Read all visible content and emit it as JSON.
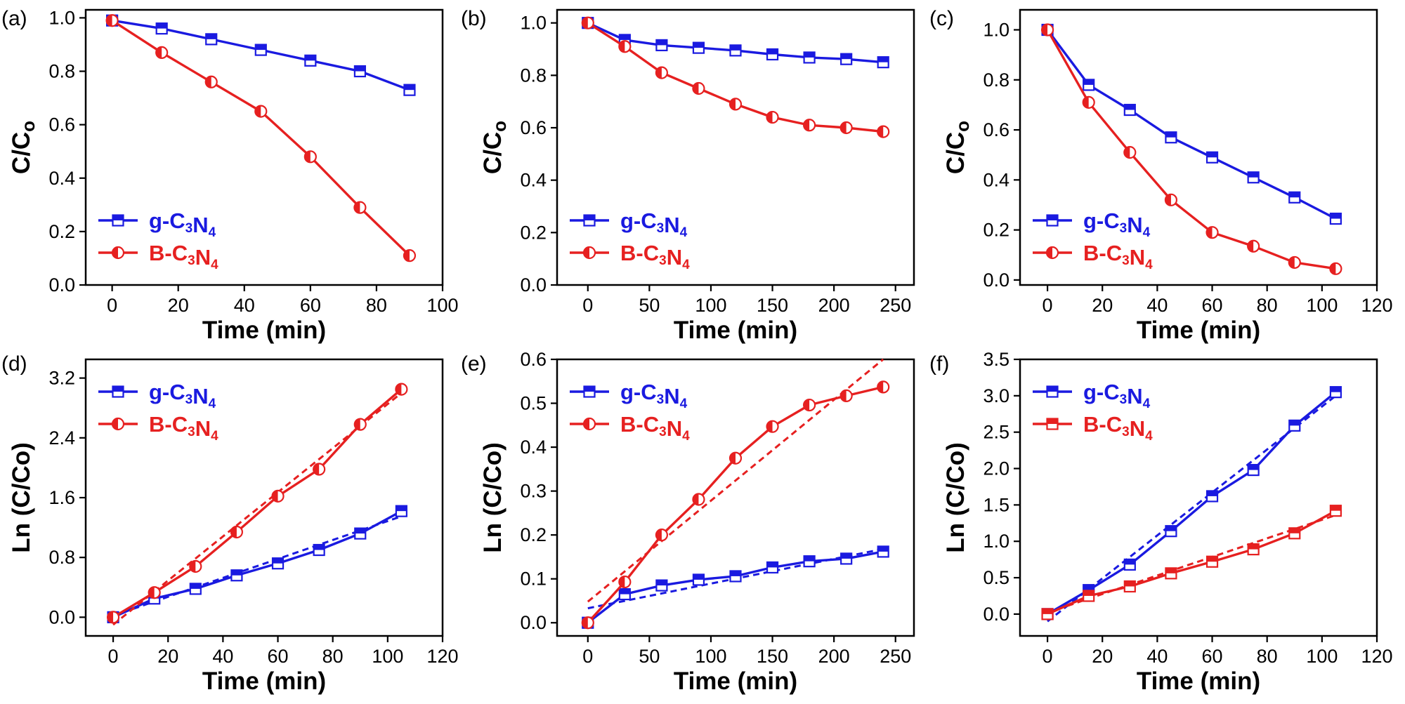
{
  "colors": {
    "blue": "#1a1ae0",
    "red": "#e62020",
    "axis": "#000000"
  },
  "chart_data": [
    {
      "panel": "(a)",
      "type": "line",
      "xlabel": "Time (min)",
      "ylabel": "C/Co",
      "xlim": [
        -8,
        100
      ],
      "ylim": [
        0.0,
        1.03
      ],
      "xticks": [
        0,
        20,
        40,
        60,
        80,
        100
      ],
      "yticks": [
        0.0,
        0.2,
        0.4,
        0.6,
        0.8,
        1.0
      ],
      "xtick_labels": [
        "0",
        "20",
        "40",
        "60",
        "80",
        "100"
      ],
      "ytick_labels": [
        "0.0",
        "0.2",
        "0.4",
        "0.6",
        "0.8",
        "1.0"
      ],
      "legend_position": "bottom-left",
      "series": [
        {
          "name": "g-C3N4",
          "sym": "g",
          "color": "blue",
          "marker": "square",
          "x": [
            0,
            15,
            30,
            45,
            60,
            75,
            90
          ],
          "y": [
            0.99,
            0.96,
            0.92,
            0.88,
            0.84,
            0.8,
            0.73
          ]
        },
        {
          "name": "B-C3N4",
          "sym": "B",
          "color": "red",
          "marker": "circle",
          "x": [
            0,
            15,
            30,
            45,
            60,
            75,
            90
          ],
          "y": [
            0.99,
            0.87,
            0.76,
            0.65,
            0.48,
            0.29,
            0.11
          ]
        }
      ]
    },
    {
      "panel": "(b)",
      "type": "line",
      "xlabel": "Time (min)",
      "ylabel": "C/Co",
      "xlim": [
        -25,
        265
      ],
      "ylim": [
        0.0,
        1.05
      ],
      "xticks": [
        0,
        50,
        100,
        150,
        200,
        250
      ],
      "yticks": [
        0.0,
        0.2,
        0.4,
        0.6,
        0.8,
        1.0
      ],
      "xtick_labels": [
        "0",
        "50",
        "100",
        "150",
        "200",
        "250"
      ],
      "ytick_labels": [
        "0.0",
        "0.2",
        "0.4",
        "0.6",
        "0.8",
        "1.0"
      ],
      "legend_position": "bottom-left",
      "series": [
        {
          "name": "g-C3N4",
          "sym": "g",
          "color": "blue",
          "marker": "square",
          "x": [
            0,
            30,
            60,
            90,
            120,
            150,
            180,
            210,
            240
          ],
          "y": [
            1.0,
            0.935,
            0.915,
            0.905,
            0.895,
            0.88,
            0.868,
            0.862,
            0.85
          ]
        },
        {
          "name": "B-C3N4",
          "sym": "B",
          "color": "red",
          "marker": "circle",
          "x": [
            0,
            30,
            60,
            90,
            120,
            150,
            180,
            210,
            240
          ],
          "y": [
            1.0,
            0.91,
            0.81,
            0.75,
            0.69,
            0.64,
            0.61,
            0.6,
            0.585
          ]
        }
      ]
    },
    {
      "panel": "(c)",
      "type": "line",
      "xlabel": "Time (min)",
      "ylabel": "C/Co",
      "xlim": [
        -10,
        120
      ],
      "ylim": [
        -0.02,
        1.08
      ],
      "xticks": [
        0,
        20,
        40,
        60,
        80,
        100,
        120
      ],
      "yticks": [
        0.0,
        0.2,
        0.4,
        0.6,
        0.8,
        1.0
      ],
      "xtick_labels": [
        "0",
        "20",
        "40",
        "60",
        "80",
        "100",
        "120"
      ],
      "ytick_labels": [
        "0.0",
        "0.2",
        "0.4",
        "0.6",
        "0.8",
        "1.0"
      ],
      "legend_position": "bottom-left",
      "series": [
        {
          "name": "g-C3N4",
          "sym": "g",
          "color": "blue",
          "marker": "square",
          "x": [
            0,
            15,
            30,
            45,
            60,
            75,
            90,
            105
          ],
          "y": [
            1.0,
            0.78,
            0.68,
            0.57,
            0.49,
            0.41,
            0.33,
            0.245
          ]
        },
        {
          "name": "B-C3N4",
          "sym": "B",
          "color": "red",
          "marker": "circle",
          "x": [
            0,
            15,
            30,
            45,
            60,
            75,
            90,
            105
          ],
          "y": [
            1.0,
            0.71,
            0.51,
            0.32,
            0.19,
            0.135,
            0.07,
            0.045
          ]
        }
      ]
    },
    {
      "panel": "(d)",
      "type": "line",
      "xlabel": "Time (min)",
      "ylabel": "Ln (C/Co)",
      "xlim": [
        -10,
        120
      ],
      "ylim": [
        -0.25,
        3.45
      ],
      "xticks": [
        0,
        20,
        40,
        60,
        80,
        100,
        120
      ],
      "yticks": [
        0.0,
        0.8,
        1.6,
        2.4,
        3.2
      ],
      "xtick_labels": [
        "0",
        "20",
        "40",
        "60",
        "80",
        "100",
        "120"
      ],
      "ytick_labels": [
        "0.0",
        "0.8",
        "1.6",
        "2.4",
        "3.2"
      ],
      "legend_position": "top-left",
      "series": [
        {
          "name": "g-C3N4",
          "sym": "g",
          "color": "blue",
          "marker": "square",
          "x": [
            0,
            15,
            30,
            45,
            60,
            75,
            90,
            105
          ],
          "y": [
            0.0,
            0.25,
            0.38,
            0.56,
            0.72,
            0.9,
            1.12,
            1.42
          ],
          "fit": {
            "x": [
              0,
              105
            ],
            "y": [
              0.02,
              1.35
            ]
          }
        },
        {
          "name": "B-C3N4",
          "sym": "B",
          "color": "red",
          "marker": "circle",
          "x": [
            0,
            15,
            30,
            45,
            60,
            75,
            90,
            105
          ],
          "y": [
            0.0,
            0.33,
            0.68,
            1.14,
            1.62,
            1.98,
            2.58,
            3.05
          ],
          "fit": {
            "x": [
              0,
              105
            ],
            "y": [
              -0.1,
              3.0
            ]
          }
        }
      ]
    },
    {
      "panel": "(e)",
      "type": "line",
      "xlabel": "Time (min)",
      "ylabel": "Ln (C/Co)",
      "xlim": [
        -25,
        265
      ],
      "ylim": [
        -0.03,
        0.6
      ],
      "xticks": [
        0,
        50,
        100,
        150,
        200,
        250
      ],
      "yticks": [
        0.0,
        0.1,
        0.2,
        0.3,
        0.4,
        0.5,
        0.6
      ],
      "xtick_labels": [
        "0",
        "50",
        "100",
        "150",
        "200",
        "250"
      ],
      "ytick_labels": [
        "0.0",
        "0.1",
        "0.2",
        "0.3",
        "0.4",
        "0.5",
        "0.6"
      ],
      "legend_position": "top-left",
      "series": [
        {
          "name": "g-C3N4",
          "sym": "g",
          "color": "blue",
          "marker": "square",
          "x": [
            0,
            30,
            60,
            90,
            120,
            150,
            180,
            210,
            240
          ],
          "y": [
            0.0,
            0.065,
            0.085,
            0.098,
            0.106,
            0.126,
            0.14,
            0.146,
            0.162
          ],
          "fit": {
            "x": [
              0,
              240
            ],
            "y": [
              0.033,
              0.168
            ]
          }
        },
        {
          "name": "B-C3N4",
          "sym": "B",
          "color": "red",
          "marker": "circle",
          "x": [
            0,
            30,
            60,
            90,
            120,
            150,
            180,
            210,
            240
          ],
          "y": [
            0.0,
            0.093,
            0.2,
            0.281,
            0.375,
            0.447,
            0.496,
            0.517,
            0.537
          ],
          "fit": {
            "x": [
              0,
              240
            ],
            "y": [
              0.048,
              0.6
            ]
          }
        }
      ]
    },
    {
      "panel": "(f)",
      "type": "line",
      "xlabel": "Time (min)",
      "ylabel": "Ln (C/Co)",
      "xlim": [
        -10,
        120
      ],
      "ylim": [
        -0.3,
        3.5
      ],
      "xticks": [
        0,
        20,
        40,
        60,
        80,
        100,
        120
      ],
      "yticks": [
        0.0,
        0.5,
        1.0,
        1.5,
        2.0,
        2.5,
        3.0,
        3.5
      ],
      "xtick_labels": [
        "0",
        "20",
        "40",
        "60",
        "80",
        "100",
        "120"
      ],
      "ytick_labels": [
        "0.0",
        "0.5",
        "1.0",
        "1.5",
        "2.0",
        "2.5",
        "3.0",
        "3.5"
      ],
      "legend_position": "top-left",
      "series": [
        {
          "name": "g-C3N4",
          "sym": "g",
          "color": "blue",
          "marker": "square",
          "x": [
            0,
            15,
            30,
            45,
            60,
            75,
            90,
            105
          ],
          "y": [
            0.0,
            0.33,
            0.68,
            1.14,
            1.62,
            1.98,
            2.59,
            3.05
          ],
          "fit": {
            "x": [
              0,
              105
            ],
            "y": [
              -0.1,
              3.0
            ]
          }
        },
        {
          "name": "B-C3N4",
          "sym": "B",
          "color": "red",
          "marker": "square",
          "x": [
            0,
            15,
            30,
            45,
            60,
            75,
            90,
            105
          ],
          "y": [
            0.0,
            0.25,
            0.38,
            0.56,
            0.72,
            0.89,
            1.11,
            1.42
          ],
          "fit": {
            "x": [
              0,
              105
            ],
            "y": [
              0.02,
              1.36
            ]
          }
        }
      ]
    }
  ]
}
